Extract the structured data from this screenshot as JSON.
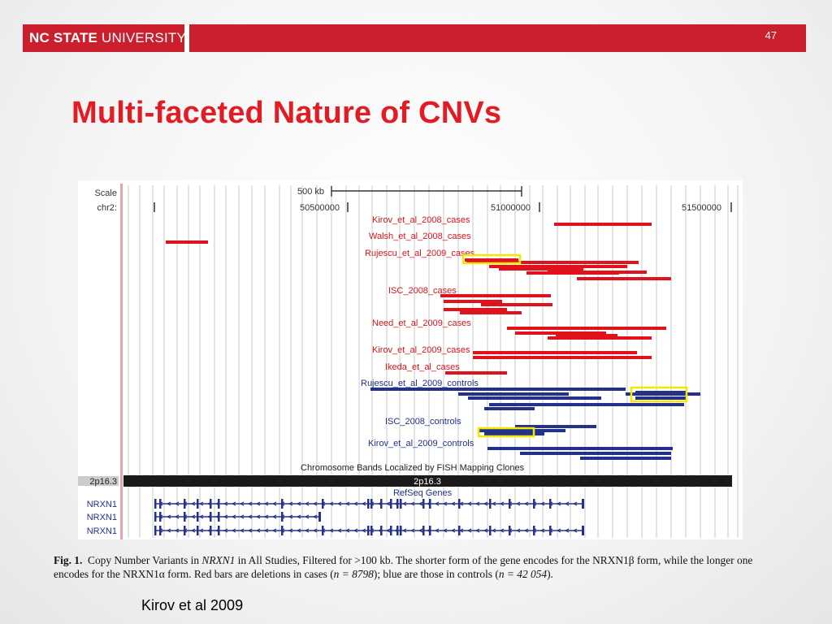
{
  "header": {
    "logo_bold": "NC STATE",
    "logo_rest": " UNIVERSITY",
    "slide_number": "47",
    "brand_color": "#cc1f2d"
  },
  "slide": {
    "title": "Multi-faceted Nature of CNVs",
    "citation": "Kirov et al 2009"
  },
  "figure": {
    "scale_label": "Scale",
    "chrom_label": "chr2:",
    "scale_value": "500 kb",
    "coords": [
      "50500000",
      "51000000",
      "51500000"
    ],
    "band_left_label": "2p16.3",
    "band_center_label": "2p16.3",
    "band_track_title": "Chromosome Bands Localized by FISH Mapping Clones",
    "refseq_title": "RefSeq Genes",
    "genes": [
      "NRXN1",
      "NRXN1",
      "NRXN1"
    ],
    "case_tracks": [
      "Kirov_et_al_2008_cases",
      "Walsh_et_al_2008_cases",
      "Rujescu_et_al_2009_cases",
      "ISC_2008_cases",
      "Need_et_al_2009_cases",
      "Kirov_et_al_2009_cases",
      "Ikeda_et_al_cases"
    ],
    "control_tracks": [
      "Rujescu_et_al_2009_controls",
      "ISC_2008_controls",
      "Kirov_et_al_2009_controls"
    ],
    "colors": {
      "deletion_case": "#e0121b",
      "control": "#23308c",
      "highlight": "#f5e700"
    }
  },
  "caption": {
    "lead": "Fig. 1.",
    "part1": "Copy Number Variants in ",
    "gene_italic": "NRXN1",
    "part2": " in All Studies, Filtered for >100 kb. The shorter form of the gene encodes for the NRXN1β form, while the longer one encodes for the NRXN1α form. Red bars are deletions in cases (",
    "n_cases": "n = 8798",
    "part3": "); blue are those in controls (",
    "n_controls": "n = 42 054",
    "part4": ")."
  }
}
